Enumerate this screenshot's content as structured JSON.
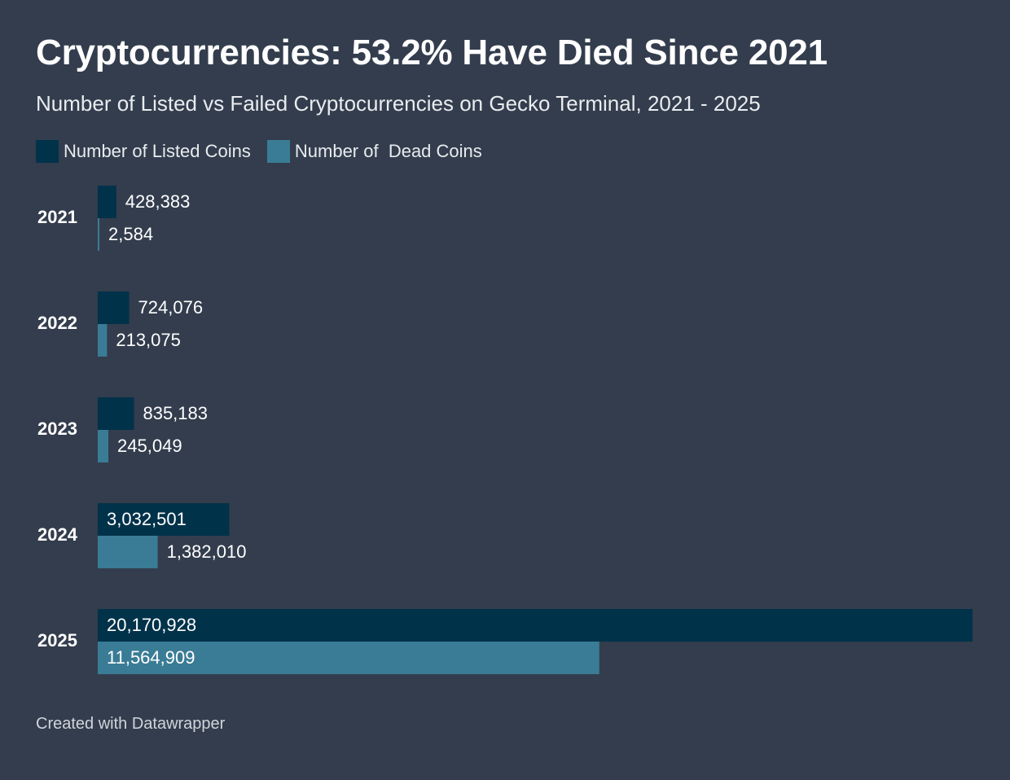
{
  "title": "Cryptocurrencies: 53.2% Have Died Since 2021",
  "subtitle": "Number of Listed vs Failed Cryptocurrencies on Gecko Terminal, 2021 - 2025",
  "footer": "Created with Datawrapper",
  "colors": {
    "background": "#333d4d",
    "listed": "#00324a",
    "dead": "#3a7c95"
  },
  "chart_data": {
    "type": "bar",
    "orientation": "horizontal",
    "categories": [
      "2021",
      "2022",
      "2023",
      "2024",
      "2025"
    ],
    "series": [
      {
        "name": "Number of Listed Coins",
        "values": [
          428383,
          724076,
          835183,
          3032501,
          20170928
        ],
        "labels": [
          "428,383",
          "724,076",
          "835,183",
          "3,032,501",
          "20,170,928"
        ]
      },
      {
        "name": "Number of  Dead Coins",
        "values": [
          2584,
          213075,
          245049,
          1382010,
          11564909
        ],
        "labels": [
          "2,584",
          "213,075",
          "245,049",
          "1,382,010",
          "11,564,909"
        ]
      }
    ],
    "xlim": [
      0,
      20170928
    ],
    "grid": false,
    "legend": "top-left"
  }
}
